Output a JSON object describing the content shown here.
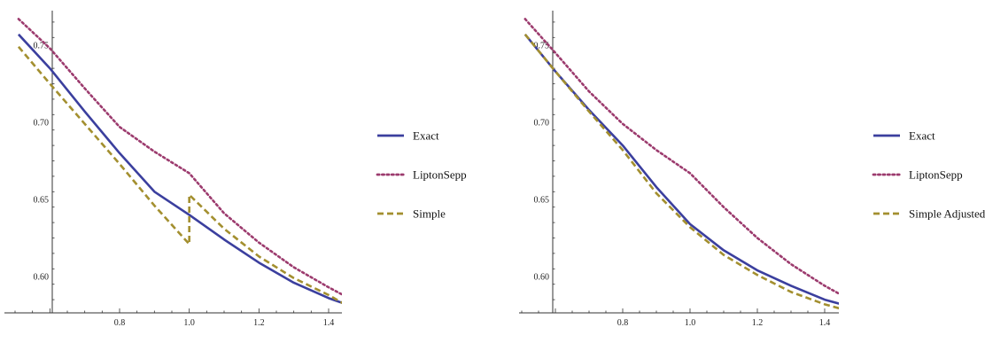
{
  "colors": {
    "exact": "#3b3f9e",
    "lipton": "#9c3b6e",
    "simple": "#a38f2f",
    "axis": "#333333"
  },
  "chart_data": [
    {
      "type": "line",
      "title": "",
      "xlabel": "",
      "ylabel": "",
      "xlim": [
        0.6,
        1.5
      ],
      "ylim": [
        0.575,
        0.78
      ],
      "x_ticks": [
        0.8,
        1.0,
        1.2,
        1.4
      ],
      "x_tick_labels": [
        "0.8",
        "1.0",
        "1.2",
        "1.4"
      ],
      "y_ticks": [
        0.6,
        0.65,
        0.7,
        0.75
      ],
      "y_tick_labels": [
        "0.60",
        "0.65",
        "0.70",
        "0.75"
      ],
      "legend_position": "right",
      "series": [
        {
          "name": "Exact",
          "style": "solid",
          "color": "#3b3f9e",
          "points": [
            [
              0.51,
              0.757
            ],
            [
              0.6,
              0.735
            ],
            [
              0.7,
              0.707
            ],
            [
              0.8,
              0.68
            ],
            [
              0.9,
              0.655
            ],
            [
              1.0,
              0.64
            ],
            [
              1.1,
              0.624
            ],
            [
              1.2,
              0.609
            ],
            [
              1.3,
              0.596
            ],
            [
              1.4,
              0.586
            ],
            [
              1.5,
              0.578
            ]
          ]
        },
        {
          "name": "LiptonSepp",
          "style": "dotted",
          "color": "#9c3b6e",
          "points": [
            [
              0.51,
              0.767
            ],
            [
              0.6,
              0.748
            ],
            [
              0.7,
              0.722
            ],
            [
              0.8,
              0.697
            ],
            [
              0.9,
              0.681
            ],
            [
              1.0,
              0.667
            ],
            [
              1.1,
              0.641
            ],
            [
              1.2,
              0.622
            ],
            [
              1.3,
              0.606
            ],
            [
              1.4,
              0.593
            ],
            [
              1.5,
              0.581
            ]
          ]
        },
        {
          "name": "Simple",
          "style": "dashed",
          "color": "#a38f2f",
          "points": [
            [
              0.51,
              0.749
            ],
            [
              0.6,
              0.725
            ],
            [
              0.7,
              0.699
            ],
            [
              0.8,
              0.673
            ],
            [
              0.9,
              0.646
            ],
            [
              1.0,
              0.621
            ],
            [
              1.0,
              0.653
            ],
            [
              1.1,
              0.631
            ],
            [
              1.2,
              0.613
            ],
            [
              1.3,
              0.599
            ],
            [
              1.4,
              0.588
            ],
            [
              1.5,
              0.575
            ]
          ]
        }
      ]
    },
    {
      "type": "line",
      "title": "",
      "xlabel": "",
      "ylabel": "",
      "xlim": [
        0.6,
        1.5
      ],
      "ylim": [
        0.575,
        0.78
      ],
      "x_ticks": [
        0.8,
        1.0,
        1.2,
        1.4
      ],
      "x_tick_labels": [
        "0.8",
        "1.0",
        "1.2",
        "1.4"
      ],
      "y_ticks": [
        0.6,
        0.65,
        0.7,
        0.75
      ],
      "y_tick_labels": [
        "0.60",
        "0.65",
        "0.70",
        "0.75"
      ],
      "legend_position": "right",
      "series": [
        {
          "name": "Exact",
          "style": "solid",
          "color": "#3b3f9e",
          "points": [
            [
              0.51,
              0.757
            ],
            [
              0.6,
              0.733
            ],
            [
              0.7,
              0.708
            ],
            [
              0.8,
              0.685
            ],
            [
              0.9,
              0.658
            ],
            [
              1.0,
              0.634
            ],
            [
              1.1,
              0.617
            ],
            [
              1.2,
              0.604
            ],
            [
              1.3,
              0.594
            ],
            [
              1.4,
              0.585
            ],
            [
              1.5,
              0.579
            ]
          ]
        },
        {
          "name": "LiptonSepp",
          "style": "dotted",
          "color": "#9c3b6e",
          "points": [
            [
              0.51,
              0.767
            ],
            [
              0.6,
              0.745
            ],
            [
              0.7,
              0.72
            ],
            [
              0.8,
              0.699
            ],
            [
              0.9,
              0.682
            ],
            [
              1.0,
              0.667
            ],
            [
              1.1,
              0.645
            ],
            [
              1.2,
              0.625
            ],
            [
              1.3,
              0.608
            ],
            [
              1.4,
              0.594
            ],
            [
              1.5,
              0.582
            ]
          ]
        },
        {
          "name": "Simple Adjusted",
          "style": "dashed",
          "color": "#a38f2f",
          "points": [
            [
              0.51,
              0.757
            ],
            [
              0.6,
              0.733
            ],
            [
              0.7,
              0.707
            ],
            [
              0.8,
              0.682
            ],
            [
              0.9,
              0.654
            ],
            [
              1.0,
              0.632
            ],
            [
              1.1,
              0.614
            ],
            [
              1.2,
              0.601
            ],
            [
              1.3,
              0.59
            ],
            [
              1.4,
              0.582
            ],
            [
              1.5,
              0.576
            ]
          ]
        }
      ]
    }
  ]
}
